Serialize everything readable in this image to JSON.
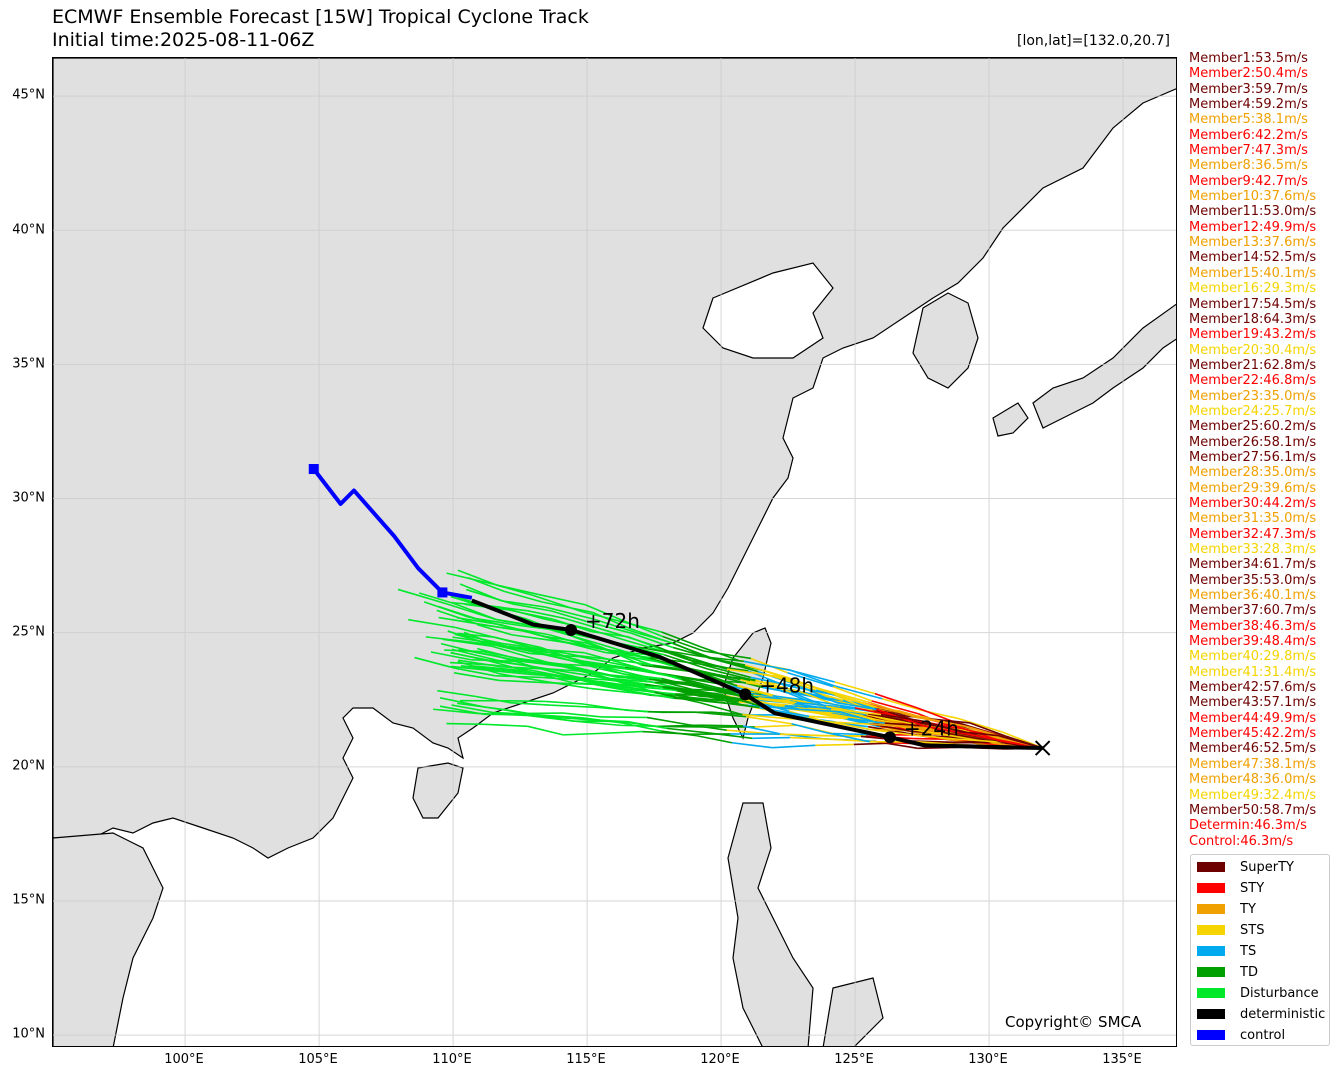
{
  "header": {
    "title_line1": "ECMWF Ensemble Forecast [15W] Tropical Cyclone Track",
    "title_line2": "Initial time:2025-08-11-06Z",
    "position_label": "[lon,lat]=[132.0,20.7]"
  },
  "axes": {
    "lat_ticks": [
      "45°N",
      "40°N",
      "35°N",
      "30°N",
      "25°N",
      "20°N",
      "15°N",
      "10°N"
    ],
    "lon_ticks": [
      "100°E",
      "105°E",
      "110°E",
      "115°E",
      "120°E",
      "125°E",
      "130°E",
      "135°E"
    ],
    "lon_range": [
      95.07,
      137.05
    ],
    "lat_range": [
      9.52,
      46.42
    ]
  },
  "annotations": {
    "h24": "+24h",
    "h48": "+48h",
    "h72": "+72h",
    "copyright": "Copyright© SMCA"
  },
  "colors": {
    "SuperTY": "#6e0000",
    "STY": "#ff0000",
    "TY": "#f0a000",
    "STS": "#f5d400",
    "TS": "#00aaee",
    "TD": "#00a000",
    "Disturbance": "#00e82a",
    "deterministic": "#000000",
    "control": "#0000ff",
    "land": "#e0e0e0"
  },
  "members": [
    {
      "label": "Member1:53.5m/s",
      "cat": "SuperTY"
    },
    {
      "label": "Member2:50.4m/s",
      "cat": "STY"
    },
    {
      "label": "Member3:59.7m/s",
      "cat": "SuperTY"
    },
    {
      "label": "Member4:59.2m/s",
      "cat": "SuperTY"
    },
    {
      "label": "Member5:38.1m/s",
      "cat": "TY"
    },
    {
      "label": "Member6:42.2m/s",
      "cat": "STY"
    },
    {
      "label": "Member7:47.3m/s",
      "cat": "STY"
    },
    {
      "label": "Member8:36.5m/s",
      "cat": "TY"
    },
    {
      "label": "Member9:42.7m/s",
      "cat": "STY"
    },
    {
      "label": "Member10:37.6m/s",
      "cat": "TY"
    },
    {
      "label": "Member11:53.0m/s",
      "cat": "SuperTY"
    },
    {
      "label": "Member12:49.9m/s",
      "cat": "STY"
    },
    {
      "label": "Member13:37.6m/s",
      "cat": "TY"
    },
    {
      "label": "Member14:52.5m/s",
      "cat": "SuperTY"
    },
    {
      "label": "Member15:40.1m/s",
      "cat": "TY"
    },
    {
      "label": "Member16:29.3m/s",
      "cat": "STS"
    },
    {
      "label": "Member17:54.5m/s",
      "cat": "SuperTY"
    },
    {
      "label": "Member18:64.3m/s",
      "cat": "SuperTY"
    },
    {
      "label": "Member19:43.2m/s",
      "cat": "STY"
    },
    {
      "label": "Member20:30.4m/s",
      "cat": "STS"
    },
    {
      "label": "Member21:62.8m/s",
      "cat": "SuperTY"
    },
    {
      "label": "Member22:46.8m/s",
      "cat": "STY"
    },
    {
      "label": "Member23:35.0m/s",
      "cat": "TY"
    },
    {
      "label": "Member24:25.7m/s",
      "cat": "STS"
    },
    {
      "label": "Member25:60.2m/s",
      "cat": "SuperTY"
    },
    {
      "label": "Member26:58.1m/s",
      "cat": "SuperTY"
    },
    {
      "label": "Member27:56.1m/s",
      "cat": "SuperTY"
    },
    {
      "label": "Member28:35.0m/s",
      "cat": "TY"
    },
    {
      "label": "Member29:39.6m/s",
      "cat": "TY"
    },
    {
      "label": "Member30:44.2m/s",
      "cat": "STY"
    },
    {
      "label": "Member31:35.0m/s",
      "cat": "TY"
    },
    {
      "label": "Member32:47.3m/s",
      "cat": "STY"
    },
    {
      "label": "Member33:28.3m/s",
      "cat": "STS"
    },
    {
      "label": "Member34:61.7m/s",
      "cat": "SuperTY"
    },
    {
      "label": "Member35:53.0m/s",
      "cat": "SuperTY"
    },
    {
      "label": "Member36:40.1m/s",
      "cat": "TY"
    },
    {
      "label": "Member37:60.7m/s",
      "cat": "SuperTY"
    },
    {
      "label": "Member38:46.3m/s",
      "cat": "STY"
    },
    {
      "label": "Member39:48.4m/s",
      "cat": "STY"
    },
    {
      "label": "Member40:29.8m/s",
      "cat": "STS"
    },
    {
      "label": "Member41:31.4m/s",
      "cat": "STS"
    },
    {
      "label": "Member42:57.6m/s",
      "cat": "SuperTY"
    },
    {
      "label": "Member43:57.1m/s",
      "cat": "SuperTY"
    },
    {
      "label": "Member44:49.9m/s",
      "cat": "STY"
    },
    {
      "label": "Member45:42.2m/s",
      "cat": "STY"
    },
    {
      "label": "Member46:52.5m/s",
      "cat": "SuperTY"
    },
    {
      "label": "Member47:38.1m/s",
      "cat": "TY"
    },
    {
      "label": "Member48:36.0m/s",
      "cat": "TY"
    },
    {
      "label": "Member49:32.4m/s",
      "cat": "STS"
    },
    {
      "label": "Member50:58.7m/s",
      "cat": "SuperTY"
    },
    {
      "label": "Determin:46.3m/s",
      "cat": "STY"
    },
    {
      "label": "Control:46.3m/s",
      "cat": "STY"
    }
  ],
  "legend": [
    {
      "label": "SuperTY",
      "color": "#6e0000"
    },
    {
      "label": "STY",
      "color": "#ff0000"
    },
    {
      "label": "TY",
      "color": "#f0a000"
    },
    {
      "label": "STS",
      "color": "#f5d400"
    },
    {
      "label": "TS",
      "color": "#00aaee"
    },
    {
      "label": "TD",
      "color": "#00a000"
    },
    {
      "label": "Disturbance",
      "color": "#00e82a"
    },
    {
      "label": "deterministic",
      "color": "#000000"
    },
    {
      "label": "control",
      "color": "#0000ff"
    }
  ],
  "tracks": {
    "initial_position": {
      "lon": 132.0,
      "lat": 20.7
    },
    "deterministic": [
      {
        "lon": 132.0,
        "lat": 20.7
      },
      {
        "lon": 127.6,
        "lat": 20.8
      },
      {
        "lon": 126.3,
        "lat": 21.1,
        "label": "+24h"
      },
      {
        "lon": 122.0,
        "lat": 22.0
      },
      {
        "lon": 120.9,
        "lat": 22.7,
        "label": "+48h"
      },
      {
        "lon": 117.7,
        "lat": 24.1
      },
      {
        "lon": 114.4,
        "lat": 25.1,
        "label": "+72h"
      },
      {
        "lon": 113.0,
        "lat": 25.3
      },
      {
        "lon": 110.7,
        "lat": 26.2
      }
    ],
    "control": [
      {
        "lon": 110.7,
        "lat": 26.3
      },
      {
        "lon": 109.6,
        "lat": 26.5
      },
      {
        "lon": 108.7,
        "lat": 27.4
      },
      {
        "lon": 107.8,
        "lat": 28.6
      },
      {
        "lon": 106.3,
        "lat": 30.3
      },
      {
        "lon": 105.8,
        "lat": 29.8
      },
      {
        "lon": 104.8,
        "lat": 31.1
      }
    ]
  }
}
